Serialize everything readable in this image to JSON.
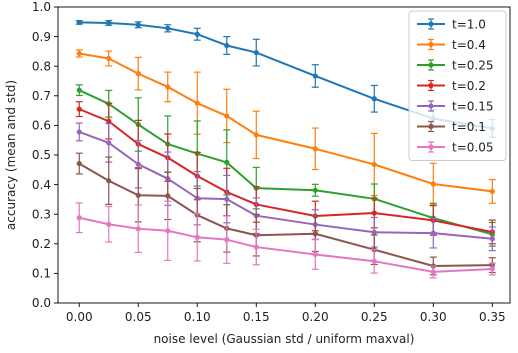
{
  "chart_data": {
    "type": "line",
    "title": "",
    "xlabel": "noise level (Gaussian std / uniform maxval)",
    "ylabel": "accuracy (mean and std)",
    "xlim": [
      -0.018,
      0.365
    ],
    "ylim": [
      0.0,
      1.0
    ],
    "x": [
      0.0,
      0.025,
      0.05,
      0.075,
      0.1,
      0.125,
      0.15,
      0.2,
      0.25,
      0.3,
      0.35
    ],
    "xticks": [
      0.0,
      0.05,
      0.1,
      0.15,
      0.2,
      0.25,
      0.3,
      0.35
    ],
    "xtick_labels": [
      "0.00",
      "0.05",
      "0.10",
      "0.15",
      "0.20",
      "0.25",
      "0.30",
      "0.35"
    ],
    "yticks": [
      0.0,
      0.1,
      0.2,
      0.3,
      0.4,
      0.5,
      0.6,
      0.7,
      0.8,
      0.9,
      1.0
    ],
    "ytick_labels": [
      "0.0",
      "0.1",
      "0.2",
      "0.3",
      "0.4",
      "0.5",
      "0.6",
      "0.7",
      "0.8",
      "0.9",
      "1.0"
    ],
    "grid": false,
    "legend_position": "top-right",
    "series": [
      {
        "name": "t=1.0",
        "color": "#1f77b4",
        "values": [
          0.948,
          0.946,
          0.94,
          0.928,
          0.908,
          0.87,
          0.846,
          0.767,
          0.69,
          0.623,
          0.59
        ],
        "errors": [
          0.006,
          0.008,
          0.01,
          0.012,
          0.02,
          0.03,
          0.045,
          0.038,
          0.045,
          0.03,
          0.03
        ]
      },
      {
        "name": "t=0.4",
        "color": "#ff7f0e",
        "values": [
          0.843,
          0.826,
          0.775,
          0.73,
          0.675,
          0.632,
          0.568,
          0.521,
          0.468,
          0.402,
          0.377
        ],
        "errors": [
          0.012,
          0.025,
          0.055,
          0.05,
          0.105,
          0.09,
          0.08,
          0.07,
          0.105,
          0.07,
          0.04
        ]
      },
      {
        "name": "t=0.25",
        "color": "#2ca02c",
        "values": [
          0.719,
          0.673,
          0.603,
          0.537,
          0.505,
          0.475,
          0.388,
          0.381,
          0.352,
          0.287,
          0.232
        ],
        "errors": [
          0.018,
          0.045,
          0.09,
          0.095,
          0.11,
          0.11,
          0.07,
          0.02,
          0.05,
          0.05,
          0.04
        ]
      },
      {
        "name": "t=0.2",
        "color": "#d62728",
        "values": [
          0.655,
          0.614,
          0.537,
          0.491,
          0.429,
          0.375,
          0.333,
          0.294,
          0.304,
          0.279,
          0.24
        ],
        "errors": [
          0.025,
          0.06,
          0.08,
          0.08,
          0.08,
          0.08,
          0.06,
          0.05,
          0.05,
          0.05,
          0.04
        ]
      },
      {
        "name": "t=0.15",
        "color": "#9467bd",
        "values": [
          0.578,
          0.541,
          0.469,
          0.42,
          0.354,
          0.351,
          0.295,
          0.265,
          0.239,
          0.236,
          0.217
        ],
        "errors": [
          0.03,
          0.065,
          0.08,
          0.09,
          0.09,
          0.08,
          0.06,
          0.05,
          0.05,
          0.05,
          0.04
        ]
      },
      {
        "name": "t=0.1",
        "color": "#8c564b",
        "values": [
          0.471,
          0.413,
          0.364,
          0.362,
          0.297,
          0.252,
          0.229,
          0.234,
          0.18,
          0.125,
          0.128
        ],
        "errors": [
          0.035,
          0.08,
          0.09,
          0.08,
          0.09,
          0.08,
          0.07,
          0.06,
          0.05,
          0.03,
          0.025
        ]
      },
      {
        "name": "t=0.05",
        "color": "#e377c2",
        "values": [
          0.288,
          0.266,
          0.251,
          0.244,
          0.222,
          0.214,
          0.189,
          0.164,
          0.141,
          0.105,
          0.115
        ],
        "errors": [
          0.05,
          0.06,
          0.08,
          0.1,
          0.08,
          0.08,
          0.06,
          0.05,
          0.04,
          0.02,
          0.02
        ]
      }
    ]
  }
}
